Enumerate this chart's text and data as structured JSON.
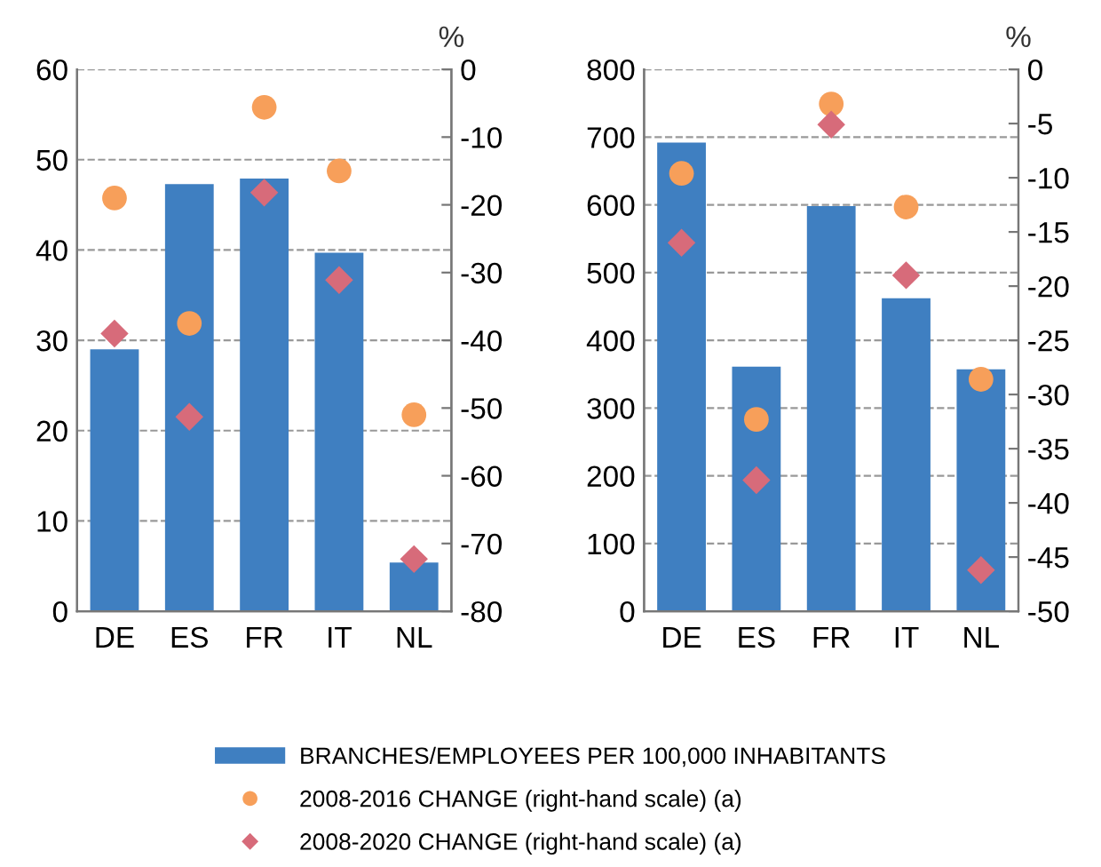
{
  "chart_data": [
    {
      "type": "bar",
      "categories": [
        "DE",
        "ES",
        "FR",
        "IT",
        "NL"
      ],
      "y2label": "%",
      "ylim": [
        0,
        60
      ],
      "yticks": [
        0,
        10,
        20,
        30,
        40,
        50,
        60
      ],
      "y2lim": [
        -80,
        0
      ],
      "y2ticks": [
        -80,
        -70,
        -60,
        -50,
        -40,
        -30,
        -20,
        -10,
        0
      ],
      "grid": "y",
      "legend": "bottom",
      "series": [
        {
          "name": "BRANCHES/EMPLOYEES PER 100,000 INHABITANTS",
          "color": "#3f7fc1",
          "values": [
            29.0,
            47.3,
            47.9,
            39.7,
            5.4
          ]
        },
        {
          "name": "2008-2016 CHANGE (right-hand scale) (a)",
          "type": "scatter",
          "axis": "y2",
          "marker": "circle",
          "color": "#f79f5a",
          "values": [
            -19,
            -37.5,
            -5.6,
            -15,
            -51
          ]
        },
        {
          "name": "2008-2020 CHANGE (right-hand scale) (a)",
          "type": "scatter",
          "axis": "y2",
          "marker": "diamond",
          "color": "#d76b7a",
          "values": [
            -39,
            -51.3,
            -18.2,
            -31.1,
            -72.3
          ]
        }
      ]
    },
    {
      "type": "bar",
      "categories": [
        "DE",
        "ES",
        "FR",
        "IT",
        "NL"
      ],
      "y2label": "%",
      "ylim": [
        0,
        800
      ],
      "yticks": [
        0,
        100,
        200,
        300,
        400,
        500,
        600,
        700,
        800
      ],
      "y2lim": [
        -50,
        0
      ],
      "y2ticks": [
        -50,
        -45,
        -40,
        -35,
        -30,
        -25,
        -20,
        -15,
        -10,
        -5,
        0
      ],
      "grid": "y",
      "series": [
        {
          "color": "#3f7fc1",
          "values": [
            692,
            361,
            598,
            462,
            357
          ]
        },
        {
          "type": "scatter",
          "axis": "y2",
          "marker": "circle",
          "color": "#f79f5a",
          "values": [
            -9.6,
            -32.3,
            -3.2,
            -12.7,
            -28.6
          ]
        },
        {
          "type": "scatter",
          "axis": "y2",
          "marker": "diamond",
          "color": "#d76b7a",
          "values": [
            -16.0,
            -37.9,
            -5.1,
            -19.0,
            -46.2
          ]
        }
      ]
    }
  ]
}
